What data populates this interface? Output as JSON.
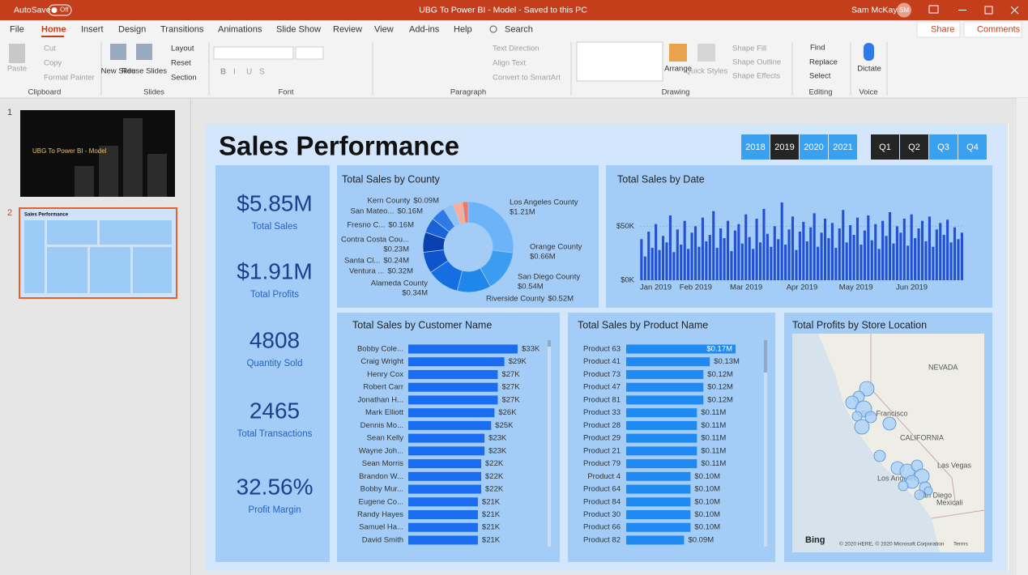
{
  "window": {
    "autosave": "AutoSave",
    "autosave_state": "Off",
    "title": "UBG To Power BI - Model  -  Saved to this PC",
    "user": "Sam McKay",
    "initials": "SM"
  },
  "ribbon": {
    "tabs": [
      "File",
      "Home",
      "Insert",
      "Design",
      "Transitions",
      "Animations",
      "Slide Show",
      "Review",
      "View",
      "Add-ins",
      "Help"
    ],
    "search": "Search",
    "share": "Share",
    "comments": "Comments",
    "clipboard": {
      "name": "Clipboard",
      "paste": "Paste",
      "cut": "Cut",
      "copy": "Copy",
      "format_painter": "Format Painter"
    },
    "slides": {
      "name": "Slides",
      "new_slide": "New Slide",
      "reuse_slides": "Reuse Slides",
      "layout": "Layout",
      "reset": "Reset",
      "section": "Section"
    },
    "font": {
      "name": "Font",
      "buttons": [
        "B",
        "I",
        "U",
        "S"
      ]
    },
    "paragraph": {
      "name": "Paragraph",
      "text_direction": "Text Direction",
      "align_text": "Align Text",
      "convert": "Convert to SmartArt"
    },
    "drawing": {
      "name": "Drawing",
      "arrange": "Arrange",
      "quick_styles": "Quick Styles",
      "shape_fill": "Shape Fill",
      "shape_outline": "Shape Outline",
      "shape_effects": "Shape Effects"
    },
    "editing": {
      "name": "Editing",
      "find": "Find",
      "replace": "Replace",
      "select": "Select"
    },
    "voice": {
      "name": "Voice",
      "dictate": "Dictate"
    }
  },
  "slides_panel": {
    "numbers": [
      "1",
      "2"
    ],
    "thumbnail_title": "UBG To Power BI - Model"
  },
  "dashboard": {
    "title": "Sales Performance",
    "years": {
      "labels": [
        "2018",
        "2019",
        "2020",
        "2021"
      ],
      "active": [
        false,
        true,
        false,
        false
      ]
    },
    "quarters": {
      "labels": [
        "Q1",
        "Q2",
        "Q3",
        "Q4"
      ],
      "active": [
        true,
        true,
        false,
        false
      ]
    },
    "button_color": "#3aa0f0",
    "active_color": "#252525",
    "kpis": [
      {
        "value": "$5.85M",
        "label": "Total Sales"
      },
      {
        "value": "$1.91M",
        "label": "Total Profits"
      },
      {
        "value": "4808",
        "label": "Quantity Sold"
      },
      {
        "value": "2465",
        "label": "Total Transactions"
      },
      {
        "value": "32.56%",
        "label": "Profit Margin"
      }
    ],
    "county_chart": {
      "type": "donut",
      "title": "Total Sales by County",
      "categories": [
        "Los Angeles County",
        "Orange County",
        "San Diego County",
        "Riverside County",
        "Alameda County",
        "Ventura ...",
        "Santa Cl...",
        "Contra Costa Cou...",
        "Fresno C...",
        "San Mateo...",
        "Kern County"
      ],
      "values": [
        1.21,
        0.66,
        0.54,
        0.52,
        0.34,
        0.32,
        0.24,
        0.23,
        0.16,
        0.16,
        0.09
      ],
      "value_labels": [
        "$1.21M",
        "$0.66M",
        "$0.54M",
        "$0.52M",
        "$0.34M",
        "$0.32M",
        "$0.24M",
        "$0.23M",
        "$0.16M",
        "$0.16M",
        "$0.09M"
      ],
      "colors": [
        "#6cb4f7",
        "#3b9cf0",
        "#1f86ea",
        "#166ee3",
        "#0e55cc",
        "#0a3fae",
        "#1b62d6",
        "#2f7ae6",
        "#8fc3f7",
        "#f4b09c",
        "#ee7a66"
      ]
    },
    "date_chart": {
      "type": "bar",
      "title": "Total Sales by Date",
      "color": "#2451d4",
      "grid": true,
      "values": [
        38,
        22,
        45,
        30,
        52,
        28,
        41,
        35,
        60,
        26,
        47,
        33,
        55,
        29,
        44,
        50,
        31,
        58,
        36,
        42,
        64,
        30,
        48,
        39,
        55,
        27,
        46,
        52,
        34,
        61,
        40,
        29,
        57,
        35,
        66,
        43,
        31,
        50,
        38,
        72,
        33,
        47,
        59,
        28,
        45,
        54,
        36,
        49,
        62,
        31,
        44,
        57,
        39,
        53,
        30,
        48,
        65,
        35,
        51,
        42,
        58,
        33,
        46,
        60,
        37,
        52,
        29,
        55,
        41,
        63,
        34,
        50,
        44,
        57,
        32,
        61,
        39,
        48,
        55,
        36,
        59,
        31,
        47,
        53,
        42,
        56,
        35,
        49,
        38,
        44
      ],
      "xlim": [
        0,
        90
      ],
      "xticks": [
        {
          "value": 0,
          "label": "Jan 2019"
        },
        {
          "value": 15.5,
          "label": "Feb 2019"
        },
        {
          "value": 29.5,
          "label": "Mar 2019"
        },
        {
          "value": 45,
          "label": "Apr 2019"
        },
        {
          "value": 60,
          "label": "May 2019"
        },
        {
          "value": 75.5,
          "label": "Jun 2019"
        }
      ],
      "ylim": [
        0,
        75
      ],
      "yticks": [
        {
          "value": 0,
          "label": "$0K"
        },
        {
          "value": 50,
          "label": "$50K"
        }
      ]
    },
    "customer_chart": {
      "type": "hbar",
      "title": "Total Sales by Customer Name",
      "color": "#1a6cf0",
      "categories": [
        "Bobby Cole...",
        "Craig Wright",
        "Henry Cox",
        "Robert Carr",
        "Jonathan H...",
        "Mark Elliott",
        "Dennis Mo...",
        "Sean Kelly",
        "Wayne Joh...",
        "Sean Morris",
        "Brandon W...",
        "Bobby Mur...",
        "Eugene Co...",
        "Randy Hayes",
        "Samuel Ha...",
        "David Smith"
      ],
      "values": [
        33,
        29,
        27,
        27,
        27,
        26,
        25,
        23,
        23,
        22,
        22,
        22,
        21,
        21,
        21,
        21
      ],
      "value_labels": [
        "$33K",
        "$29K",
        "$27K",
        "$27K",
        "$27K",
        "$26K",
        "$25K",
        "$23K",
        "$23K",
        "$22K",
        "$22K",
        "$22K",
        "$21K",
        "$21K",
        "$21K",
        "$21K"
      ]
    },
    "product_chart": {
      "type": "hbar",
      "title": "Total Sales by Product Name",
      "color": "#1f8bf2",
      "highlight": "Product 63",
      "categories": [
        "Product 63",
        "Product 41",
        "Product 73",
        "Product 47",
        "Product 81",
        "Product 33",
        "Product 28",
        "Product 29",
        "Product 21",
        "Product 79",
        "Product 4",
        "Product 64",
        "Product 84",
        "Product 30",
        "Product 66",
        "Product 82"
      ],
      "values": [
        0.17,
        0.13,
        0.12,
        0.12,
        0.12,
        0.11,
        0.11,
        0.11,
        0.11,
        0.11,
        0.1,
        0.1,
        0.1,
        0.1,
        0.1,
        0.09
      ],
      "value_labels": [
        "$0.17M",
        "$0.13M",
        "$0.12M",
        "$0.12M",
        "$0.12M",
        "$0.11M",
        "$0.11M",
        "$0.11M",
        "$0.11M",
        "$0.11M",
        "$0.10M",
        "$0.10M",
        "$0.10M",
        "$0.10M",
        "$0.10M",
        "$0.09M"
      ]
    },
    "map": {
      "title": "Total Profits by Store Location",
      "labels": [
        "NEVADA",
        "San Francisco",
        "CALIFORNIA",
        "Las Vegas",
        "Los Angeles",
        "San Diego",
        "Mexicali"
      ],
      "logo": "Bing",
      "copyright": "© 2020 HERE, © 2020 Microsoft Corporation",
      "terms": "Terms"
    }
  }
}
